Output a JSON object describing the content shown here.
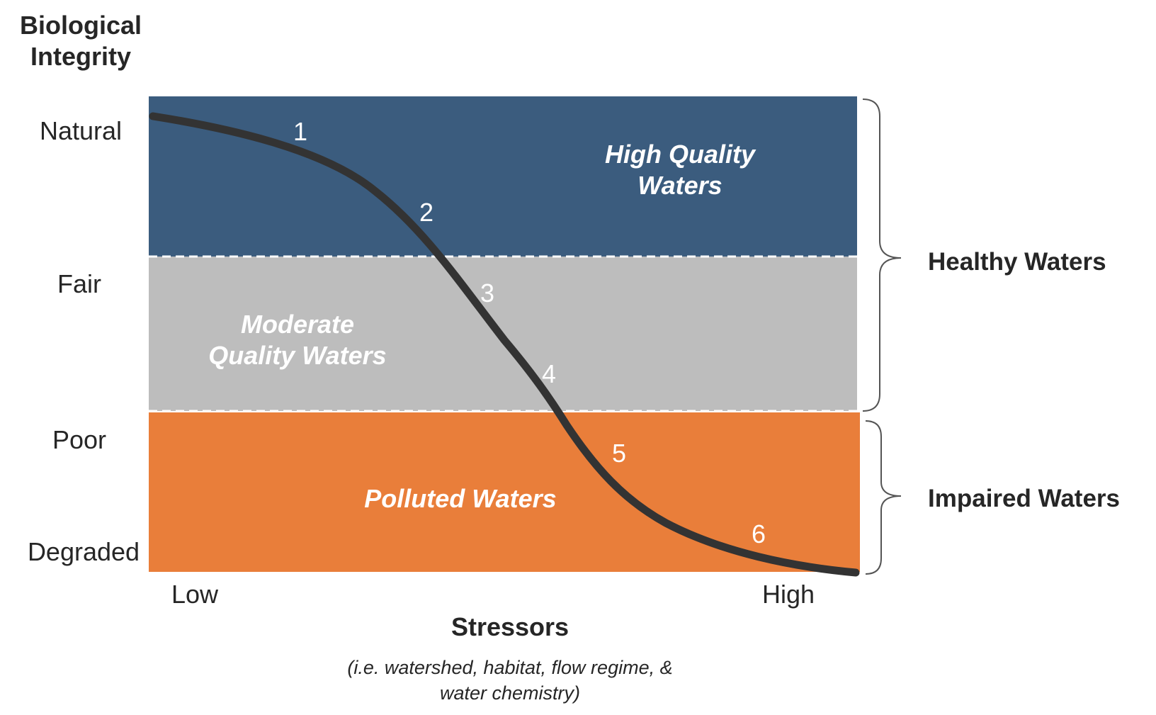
{
  "y_axis": {
    "title_line1": "Biological",
    "title_line2": "Integrity",
    "levels": [
      "Natural",
      "Fair",
      "Poor",
      "Degraded"
    ]
  },
  "x_axis": {
    "low": "Low",
    "high": "High",
    "title": "Stressors",
    "subtitle_line1": "(i.e. watershed, habitat, flow regime, &",
    "subtitle_line2": "water chemistry)"
  },
  "zones": [
    {
      "line1": "High Quality",
      "line2": "Waters",
      "color": "#3b5c7e"
    },
    {
      "line1": "Moderate",
      "line2": "Quality Waters",
      "color": "#bdbdbd"
    },
    {
      "line1": "Polluted Waters",
      "color": "#e97e3a"
    }
  ],
  "categories": [
    "Healthy Waters",
    "Impaired Waters"
  ],
  "curve": {
    "color": "#333333",
    "point_labels": [
      "1",
      "2",
      "3",
      "4",
      "5",
      "6"
    ]
  }
}
